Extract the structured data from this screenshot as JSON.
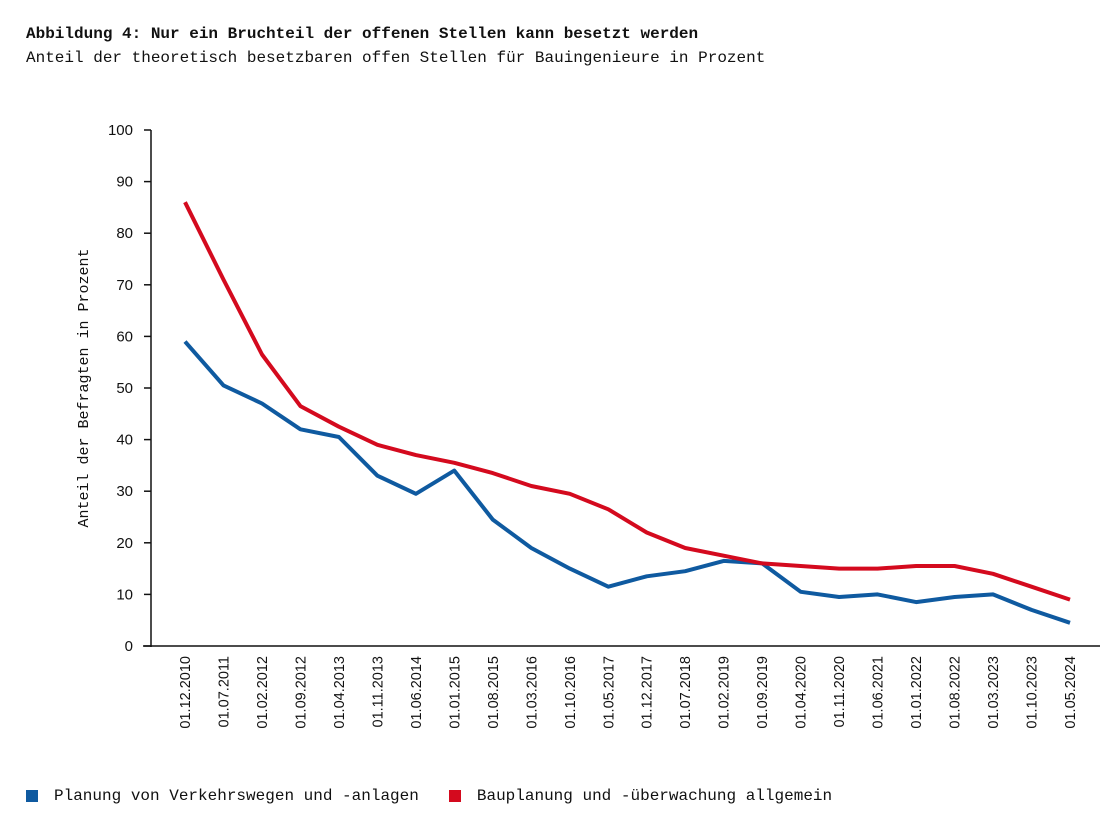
{
  "header": {
    "title": "Abbildung 4: Nur ein Bruchteil der offenen Stellen kann besetzt werden",
    "subtitle": "Anteil der theoretisch besetzbaren offen Stellen für Bauingenieure in Prozent"
  },
  "chart_data": {
    "type": "line",
    "title": "Abbildung 4: Nur ein Bruchteil der offenen Stellen kann besetzt werden",
    "subtitle": "Anteil der theoretisch besetzbaren offen Stellen für Bauingenieure in Prozent",
    "xlabel": "",
    "ylabel": "Anteil der Befragten in Prozent",
    "ylim": [
      0,
      100
    ],
    "yticks": [
      "0",
      "10",
      "20",
      "30",
      "40",
      "50",
      "60",
      "70",
      "80",
      "90",
      "100"
    ],
    "grid": false,
    "legend_position": "bottom-left",
    "x": [
      "01.12.2010",
      "01.07.2011",
      "01.02.2012",
      "01.09.2012",
      "01.04.2013",
      "01.11.2013",
      "01.06.2014",
      "01.01.2015",
      "01.08.2015",
      "01.03.2016",
      "01.10.2016",
      "01.05.2017",
      "01.12.2017",
      "01.07.2018",
      "01.02.2019",
      "01.09.2019",
      "01.04.2020",
      "01.11.2020",
      "01.06.2021",
      "01.01.2022",
      "01.08.2022",
      "01.03.2023",
      "01.10.2023",
      "01.05.2024"
    ],
    "series": [
      {
        "name": "Planung von Verkehrswegen und -anlagen",
        "color": "#0f5aa0",
        "values": [
          59,
          50.5,
          47,
          42,
          40.5,
          33,
          29.5,
          34,
          24.5,
          19,
          15,
          11.5,
          13.5,
          14.5,
          16.5,
          16,
          10.5,
          9.5,
          10,
          8.5,
          9.5,
          10,
          7,
          4.5
        ]
      },
      {
        "name": "Bauplanung und -überwachung allgemein",
        "color": "#d40a1e",
        "values": [
          86,
          71,
          56.5,
          46.5,
          42.5,
          39,
          37,
          35.5,
          33.5,
          31,
          29.5,
          26.5,
          22,
          19,
          17.5,
          16,
          15.5,
          15,
          15,
          15.5,
          15.5,
          14,
          11.5,
          9
        ]
      }
    ]
  },
  "legend": {
    "items": [
      {
        "label": "Planung von Verkehrswegen und -anlagen",
        "color": "#0f5aa0"
      },
      {
        "label": "Bauplanung und -überwachung allgemein",
        "color": "#d40a1e"
      }
    ]
  }
}
